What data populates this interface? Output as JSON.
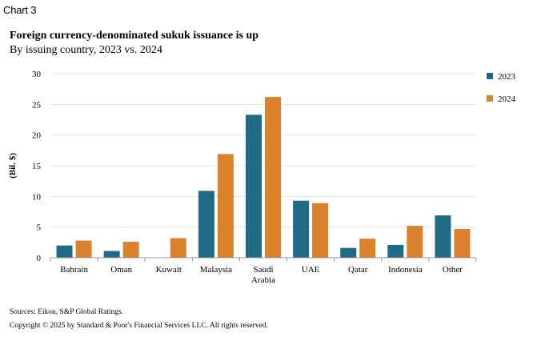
{
  "header": {
    "chart_number": "Chart 3",
    "title": "Foreign currency-denominated sukuk issuance is up",
    "subtitle": "By issuing country, 2023 vs. 2024"
  },
  "footer": {
    "source": "Sources: Eikon, S&P Global Ratings.",
    "copyright": "Copyright © 2025 by Standard & Poor's Financial Services LLC. All rights reserved."
  },
  "colors": {
    "2023": "#1f6b87",
    "2024": "#d9822b",
    "grid": "#e3e3e3",
    "axis": "#9a9a9a"
  },
  "chart_data": {
    "type": "bar",
    "categories": [
      [
        "Bahrain"
      ],
      [
        "Oman"
      ],
      [
        "Kuwait"
      ],
      [
        "Malaysia"
      ],
      [
        "Saudi",
        "Arabia"
      ],
      [
        "UAE"
      ],
      [
        "Qatar"
      ],
      [
        "Indonesia"
      ],
      [
        "Other"
      ]
    ],
    "series": [
      {
        "name": "2023",
        "values": [
          2.0,
          1.1,
          0,
          10.9,
          23.3,
          9.3,
          1.6,
          2.1,
          6.9
        ]
      },
      {
        "name": "2024",
        "values": [
          2.8,
          2.6,
          3.2,
          16.9,
          26.2,
          8.9,
          3.1,
          5.2,
          4.7
        ]
      }
    ],
    "ylabel": "(Bil. $)",
    "ylim": [
      0,
      30
    ],
    "yticks": [
      0,
      5,
      10,
      15,
      20,
      25,
      30
    ],
    "grid": true,
    "legend": "top-right"
  }
}
